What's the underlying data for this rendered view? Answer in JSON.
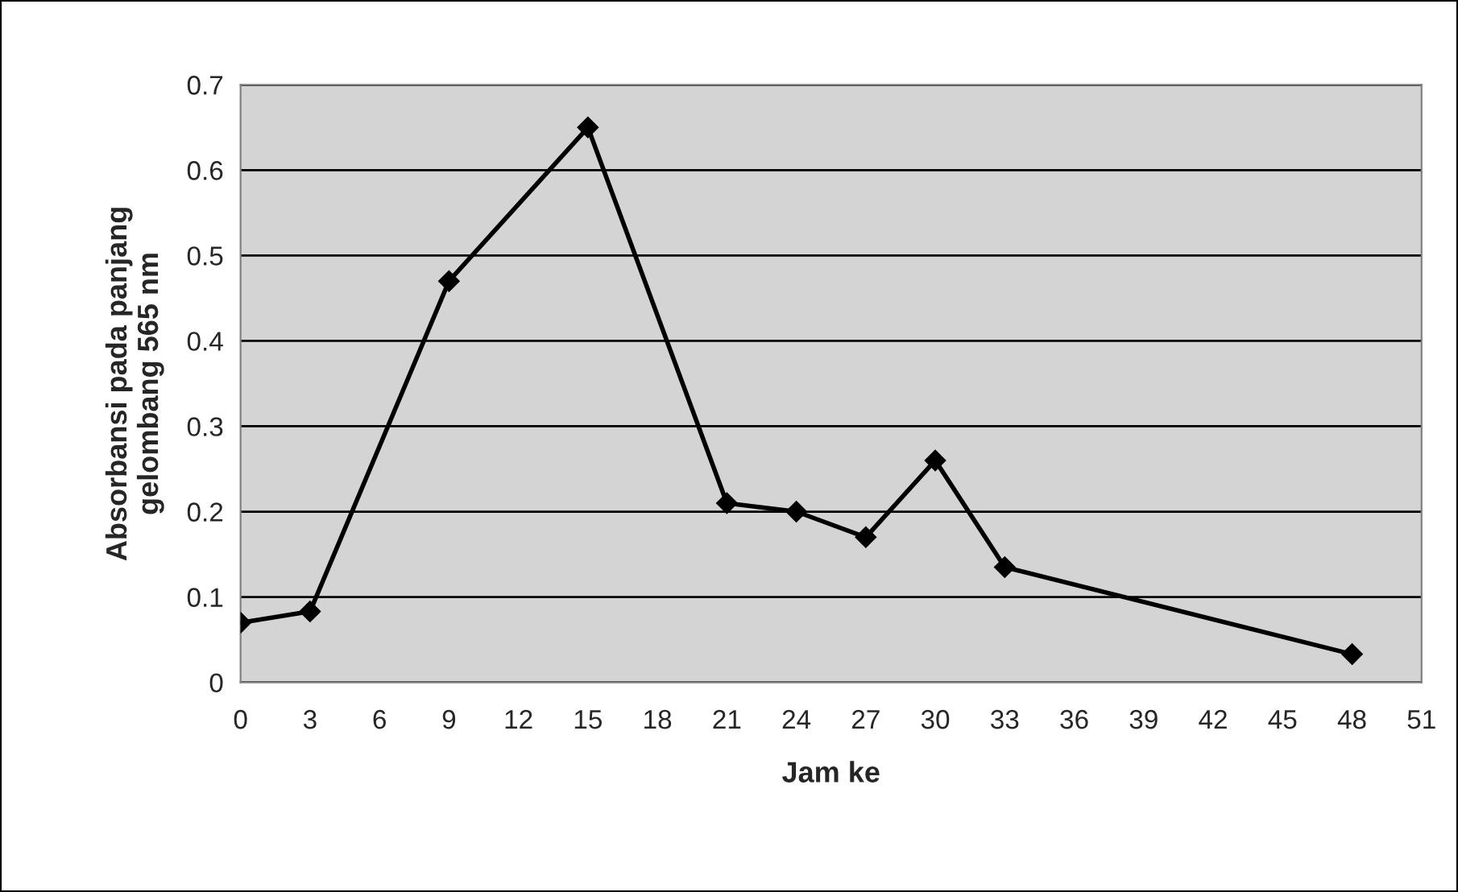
{
  "chart_data": {
    "type": "line",
    "xlabel": "Jam ke",
    "ylabel": "Absorbansi pada panjang\ngelombang 565 nm",
    "x": [
      0,
      3,
      9,
      15,
      21,
      24,
      27,
      30,
      33,
      48
    ],
    "series": [
      {
        "color": "#000000",
        "values": [
          0.07,
          0.083,
          0.47,
          0.65,
          0.21,
          0.2,
          0.17,
          0.26,
          0.135,
          0.033
        ]
      }
    ],
    "xlim": [
      0,
      51
    ],
    "xticks": [
      0,
      3,
      6,
      9,
      12,
      15,
      18,
      21,
      24,
      27,
      30,
      33,
      36,
      39,
      42,
      45,
      48,
      51
    ],
    "ylim": [
      0,
      0.7
    ],
    "yticks": [
      0,
      0.1,
      0.2,
      0.3,
      0.4,
      0.5,
      0.6,
      0.7
    ],
    "grid": "y",
    "marker": "diamond",
    "line_style": "solid",
    "legend": false
  }
}
